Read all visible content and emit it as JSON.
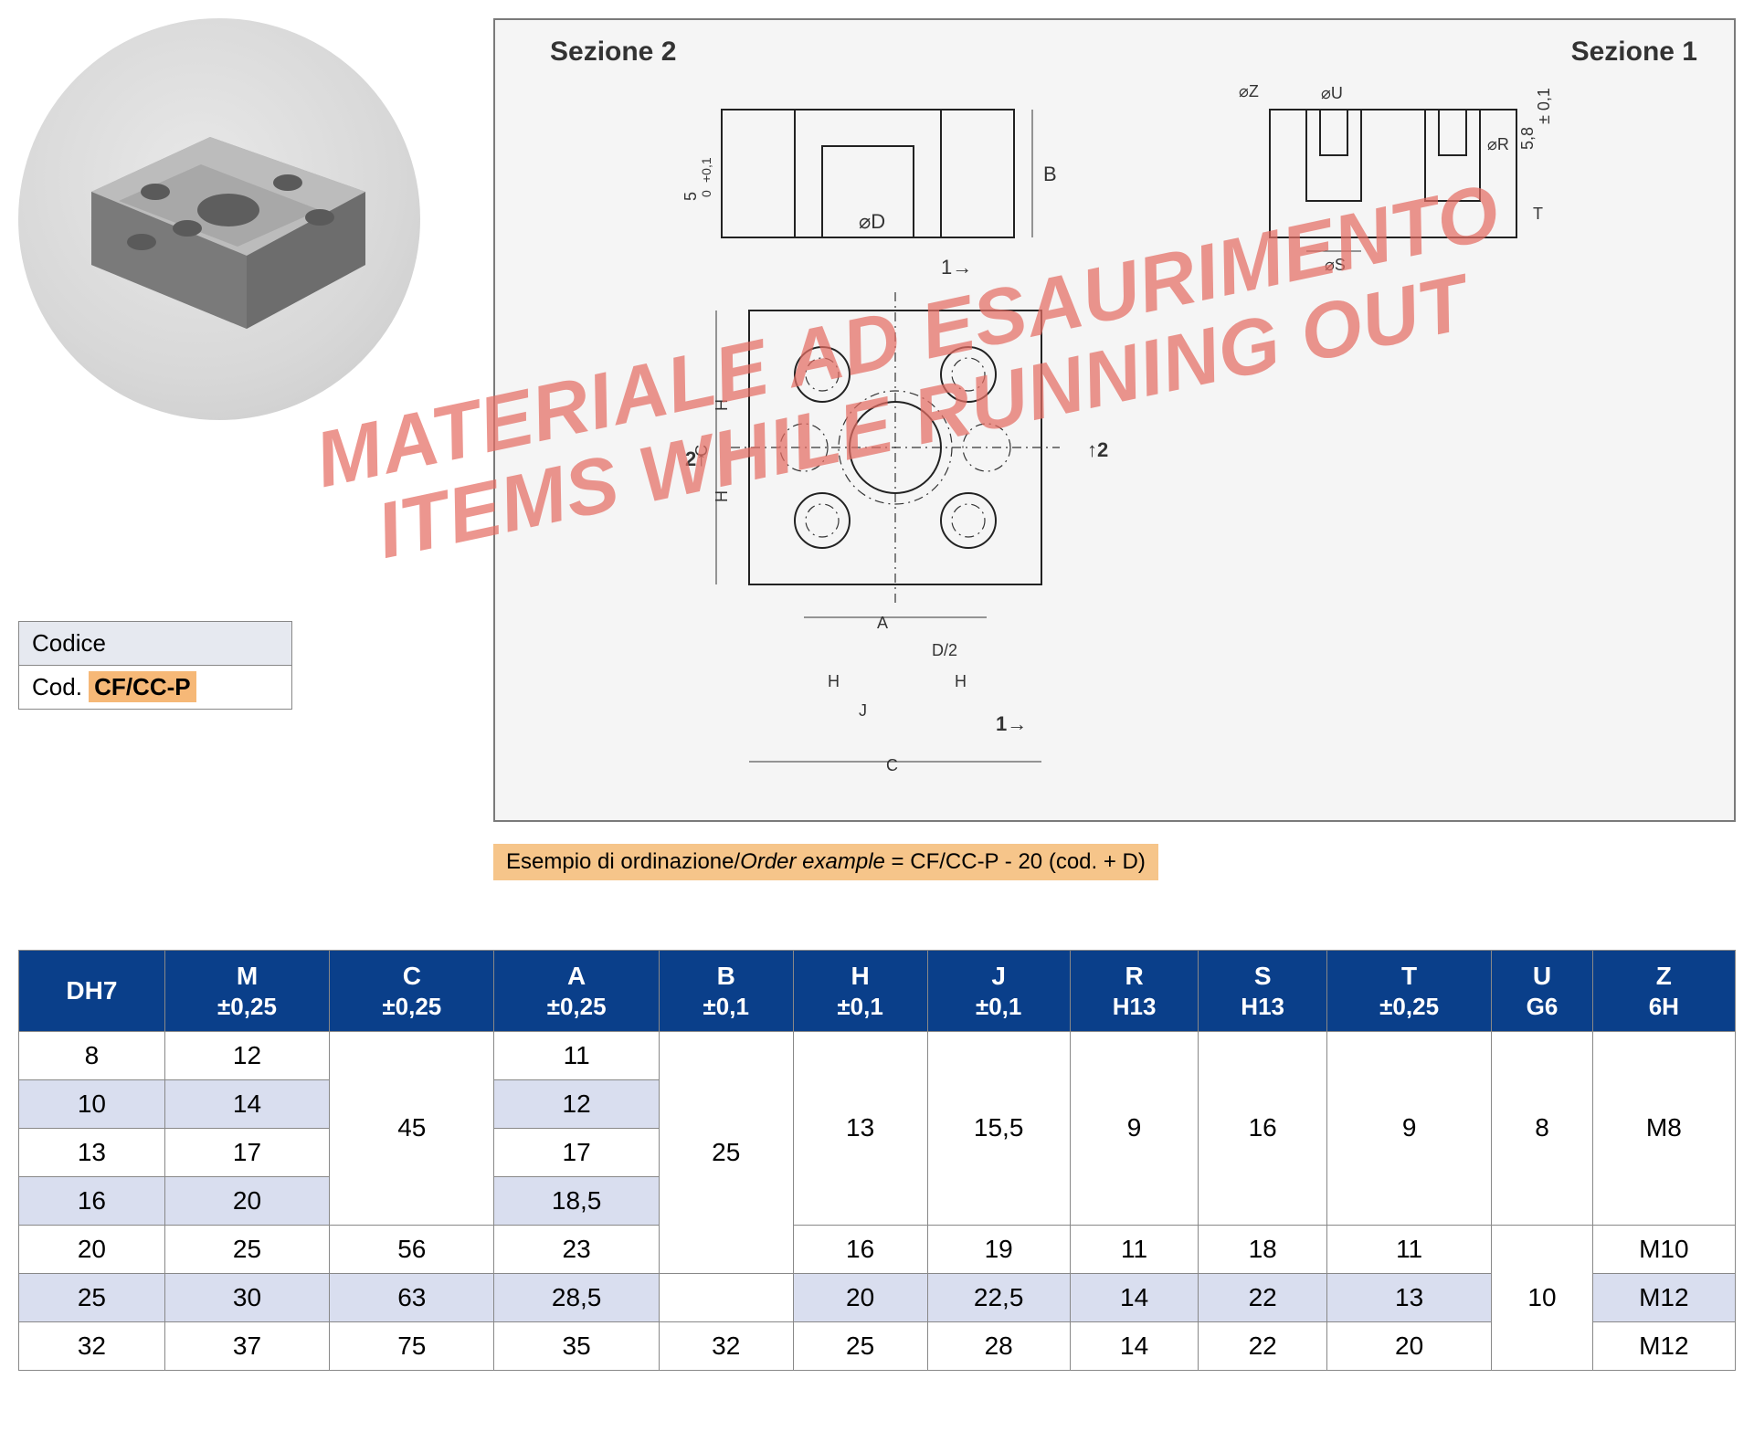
{
  "codice": {
    "label": "Codice",
    "prefix": "Cod.",
    "code": "CF/CC-P"
  },
  "drawing": {
    "sezione2": "Sezione 2",
    "sezione1": "Sezione 1",
    "labels": {
      "D": "⌀D",
      "B": "B",
      "C": "C",
      "A": "A",
      "H": "H",
      "J": "J",
      "T": "T",
      "R": "⌀R",
      "S": "⌀S",
      "U": "⌀U",
      "Z": "⌀Z",
      "D2": "D/2",
      "five": "5",
      "fiveTol": "+0,1\n 0",
      "fiveEight": "5,8",
      "pm01": "± 0,1",
      "sec1": "1",
      "sec2": "2",
      "arrows12a": "1→",
      "arrows12b": "←2"
    }
  },
  "watermark": {
    "line1": "MATERIALE AD ESAURIMENTO",
    "line2": "ITEMS WHILE RUNNING OUT"
  },
  "orderExample": {
    "it": "Esempio di ordinazione/",
    "en": "Order example",
    "rest": " = CF/CC-P - 20 (cod. + D)"
  },
  "table": {
    "headers": [
      {
        "t": "DH7",
        "tol": ""
      },
      {
        "t": "M",
        "tol": "±0,25"
      },
      {
        "t": "C",
        "tol": "±0,25"
      },
      {
        "t": "A",
        "tol": "±0,25"
      },
      {
        "t": "B",
        "tol": "±0,1"
      },
      {
        "t": "H",
        "tol": "±0,1"
      },
      {
        "t": "J",
        "tol": "±0,1"
      },
      {
        "t": "R",
        "tol": "H13"
      },
      {
        "t": "S",
        "tol": "H13"
      },
      {
        "t": "T",
        "tol": "±0,25"
      },
      {
        "t": "U",
        "tol": "G6"
      },
      {
        "t": "Z",
        "tol": "6H"
      }
    ],
    "rows": [
      {
        "alt": false,
        "cells": [
          "8",
          "12",
          {
            "v": "45",
            "rs": 4
          },
          "11",
          {
            "v": "25",
            "rs": 5
          },
          {
            "v": "13",
            "rs": 4
          },
          {
            "v": "15,5",
            "rs": 4
          },
          {
            "v": "9",
            "rs": 4
          },
          {
            "v": "16",
            "rs": 4
          },
          {
            "v": "9",
            "rs": 4
          },
          {
            "v": "8",
            "rs": 4
          },
          {
            "v": "M8",
            "rs": 4
          }
        ]
      },
      {
        "alt": true,
        "cells": [
          "10",
          "14",
          null,
          "12",
          null,
          null,
          null,
          null,
          null,
          null,
          null,
          null
        ]
      },
      {
        "alt": false,
        "cells": [
          "13",
          "17",
          null,
          "17",
          null,
          null,
          null,
          null,
          null,
          null,
          null,
          null
        ]
      },
      {
        "alt": true,
        "cells": [
          "16",
          "20",
          null,
          "18,5",
          null,
          null,
          null,
          null,
          null,
          null,
          null,
          null
        ]
      },
      {
        "alt": false,
        "cells": [
          "20",
          "25",
          "56",
          "23",
          null,
          "16",
          "19",
          "11",
          "18",
          "11",
          {
            "v": "10",
            "rs": 3
          },
          "M10"
        ]
      },
      {
        "alt": true,
        "cells": [
          "25",
          "30",
          "63",
          "28,5",
          {
            "v": "",
            "rs": 0,
            "blank": true
          },
          "20",
          "22,5",
          "14",
          "22",
          "13",
          null,
          "M12"
        ]
      },
      {
        "alt": false,
        "cells": [
          "32",
          "37",
          "75",
          "35",
          "32",
          "25",
          "28",
          "14",
          "22",
          "20",
          null,
          "M12"
        ]
      }
    ],
    "colors": {
      "header_bg": "#0a3f8a",
      "header_fg": "#ffffff",
      "alt_bg": "#d9deef",
      "border": "#888888"
    }
  }
}
